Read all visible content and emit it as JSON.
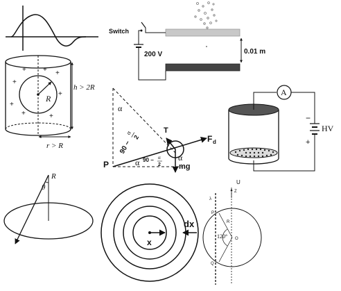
{
  "panel_wave": {},
  "panel_cylinder": {
    "height_label": "h > 2R",
    "radius_label": "R",
    "width_label": "r > R",
    "charge_symbol": "+"
  },
  "panel_capacitor": {
    "switch_label": "Switch",
    "voltage_label": "200 V",
    "gap_label": "0.01 m"
  },
  "panel_forces": {
    "top_angle": "α",
    "label_T": "T",
    "label_Fd": "F",
    "label_Fd_sub": "d",
    "label_P": "P",
    "label_alpha1": "α",
    "label_alpha2": "α",
    "angle_left": "90 −",
    "angle_left_frac_num": "α",
    "angle_left_frac_den": "2",
    "angle_right": "90 −",
    "angle_right_frac_num": "α",
    "angle_right_frac_den": "2",
    "label_mg": "mg"
  },
  "panel_hv": {
    "ammeter": "A",
    "hv_label": "HV",
    "minus": "−",
    "plus": "+"
  },
  "panel_cone": {
    "theta": "θ",
    "radius": "R"
  },
  "panel_rings": {
    "dx_label": "dx",
    "x_label": "x"
  },
  "panel_circle": {
    "top_label": "U",
    "axis_label": "Z",
    "lambda_label": "λ",
    "p_label": "P",
    "q_label": "Q",
    "r_label": "R",
    "o_label": "O",
    "angle_label": "120°"
  }
}
